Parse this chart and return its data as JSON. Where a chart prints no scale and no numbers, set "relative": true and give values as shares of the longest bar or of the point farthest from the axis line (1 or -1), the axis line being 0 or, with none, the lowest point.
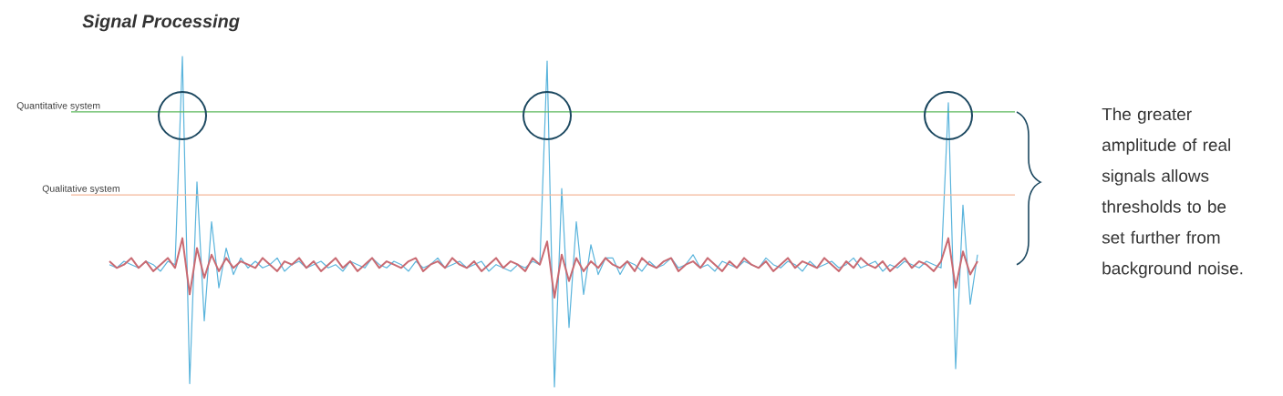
{
  "chart_data": {
    "type": "line",
    "relative": true,
    "title": "Signal Processing",
    "categories": [
      null,
      null,
      null,
      null,
      null,
      null,
      null,
      null,
      null,
      null,
      null,
      null,
      null,
      null,
      null,
      null,
      null,
      null,
      null,
      null,
      null,
      null,
      null,
      null,
      null,
      null,
      null,
      null,
      null,
      null,
      null,
      null,
      null,
      null,
      null,
      null,
      null,
      null,
      null,
      null,
      null,
      null,
      null,
      null,
      null,
      null,
      null,
      null,
      null,
      null,
      null,
      null,
      null,
      null,
      null,
      null,
      null,
      null,
      null,
      null,
      null,
      null,
      null,
      null,
      null,
      null,
      null,
      null,
      null,
      null,
      null,
      null,
      null,
      null,
      null,
      null,
      null,
      null,
      null,
      null,
      null,
      null,
      null,
      null,
      null,
      null,
      null,
      null,
      null,
      null,
      null,
      null,
      null,
      null,
      null,
      null,
      null,
      null,
      null,
      null,
      null,
      null,
      null,
      null,
      null,
      null,
      null,
      null,
      null,
      null,
      null,
      null,
      null,
      null,
      null,
      null,
      null,
      null,
      null,
      null
    ],
    "series": [
      {
        "color": "#5ab4dc",
        "values": [
          0.37,
          0.36,
          0.38,
          0.37,
          0.36,
          0.38,
          0.37,
          0.35,
          0.38,
          0.37,
          1.0,
          0.01,
          0.62,
          0.2,
          0.5,
          0.3,
          0.42,
          0.34,
          0.39,
          0.36,
          0.38,
          0.36,
          0.37,
          0.39,
          0.35,
          0.37,
          0.38,
          0.36,
          0.37,
          0.38,
          0.36,
          0.37,
          0.35,
          0.38,
          0.37,
          0.36,
          0.39,
          0.37,
          0.36,
          0.38,
          0.37,
          0.35,
          0.38,
          0.36,
          0.37,
          0.39,
          0.36,
          0.37,
          0.38,
          0.36,
          0.37,
          0.38,
          0.35,
          0.37,
          0.36,
          0.35,
          0.37,
          0.36,
          0.38,
          0.37,
          0.986,
          0.0,
          0.6,
          0.18,
          0.5,
          0.28,
          0.43,
          0.34,
          0.39,
          0.39,
          0.34,
          0.38,
          0.37,
          0.35,
          0.38,
          0.36,
          0.37,
          0.39,
          0.36,
          0.37,
          0.4,
          0.36,
          0.37,
          0.35,
          0.38,
          0.37,
          0.36,
          0.38,
          0.37,
          0.36,
          0.39,
          0.37,
          0.36,
          0.38,
          0.37,
          0.35,
          0.38,
          0.36,
          0.37,
          0.38,
          0.36,
          0.37,
          0.39,
          0.36,
          0.37,
          0.38,
          0.35,
          0.37,
          0.36,
          0.38,
          0.37,
          0.36,
          0.38,
          0.37,
          0.36,
          0.86,
          0.055,
          0.55,
          0.25,
          0.4
        ]
      },
      {
        "color": "#c96a72",
        "values": [
          0.38,
          0.36,
          0.37,
          0.39,
          0.36,
          0.38,
          0.35,
          0.37,
          0.39,
          0.36,
          0.45,
          0.28,
          0.42,
          0.33,
          0.4,
          0.35,
          0.39,
          0.36,
          0.38,
          0.37,
          0.36,
          0.39,
          0.37,
          0.35,
          0.38,
          0.37,
          0.39,
          0.36,
          0.38,
          0.35,
          0.37,
          0.39,
          0.36,
          0.38,
          0.35,
          0.37,
          0.39,
          0.36,
          0.38,
          0.37,
          0.36,
          0.38,
          0.39,
          0.35,
          0.37,
          0.38,
          0.36,
          0.39,
          0.37,
          0.36,
          0.38,
          0.35,
          0.37,
          0.39,
          0.36,
          0.38,
          0.37,
          0.35,
          0.39,
          0.37,
          0.44,
          0.27,
          0.4,
          0.32,
          0.39,
          0.35,
          0.38,
          0.36,
          0.39,
          0.37,
          0.36,
          0.38,
          0.35,
          0.39,
          0.37,
          0.36,
          0.38,
          0.39,
          0.35,
          0.37,
          0.38,
          0.36,
          0.39,
          0.37,
          0.35,
          0.38,
          0.36,
          0.39,
          0.37,
          0.36,
          0.38,
          0.35,
          0.37,
          0.39,
          0.36,
          0.38,
          0.37,
          0.36,
          0.39,
          0.37,
          0.35,
          0.38,
          0.36,
          0.39,
          0.37,
          0.36,
          0.38,
          0.35,
          0.37,
          0.39,
          0.36,
          0.38,
          0.37,
          0.35,
          0.38,
          0.45,
          0.3,
          0.41,
          0.34,
          0.38
        ]
      }
    ],
    "ref_lines": [
      {
        "axis": "y",
        "value": 0.832,
        "label": "Quantitative system",
        "color": "#5cb85c"
      },
      {
        "axis": "y",
        "value": 0.581,
        "label": "Qualitative system",
        "color": "#f4b89a"
      }
    ],
    "annotations": [
      "The greater amplitude of real signals allows thresholds to be set further from background noise."
    ]
  }
}
